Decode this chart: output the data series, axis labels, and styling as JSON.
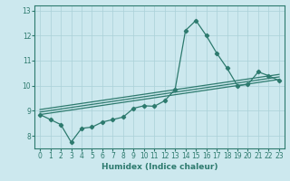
{
  "xlabel": "Humidex (Indice chaleur)",
  "bg_color": "#cce8ee",
  "line_color": "#2d7a6e",
  "grid_color": "#aad0d8",
  "xlim": [
    -0.5,
    23.5
  ],
  "ylim": [
    7.5,
    13.2
  ],
  "yticks": [
    8,
    9,
    10,
    11,
    12,
    13
  ],
  "xticks": [
    0,
    1,
    2,
    3,
    4,
    5,
    6,
    7,
    8,
    9,
    10,
    11,
    12,
    13,
    14,
    15,
    16,
    17,
    18,
    19,
    20,
    21,
    22,
    23
  ],
  "series1_x": [
    0,
    1,
    2,
    3,
    4,
    5,
    6,
    7,
    8,
    9,
    10,
    11,
    12,
    13,
    14,
    15,
    16,
    17,
    18,
    19,
    20,
    21,
    22,
    23
  ],
  "series1_y": [
    8.85,
    8.65,
    8.45,
    7.75,
    8.3,
    8.35,
    8.55,
    8.65,
    8.75,
    9.1,
    9.2,
    9.18,
    9.4,
    9.85,
    12.2,
    12.6,
    12.0,
    11.3,
    10.7,
    10.0,
    10.05,
    10.55,
    10.4,
    10.2
  ],
  "ref_line1_y": [
    8.85,
    10.25
  ],
  "ref_line2_y": [
    8.95,
    10.35
  ],
  "ref_line3_y": [
    9.05,
    10.45
  ],
  "marker_size": 2.2,
  "line_width": 0.9,
  "tick_fontsize": 5.5
}
